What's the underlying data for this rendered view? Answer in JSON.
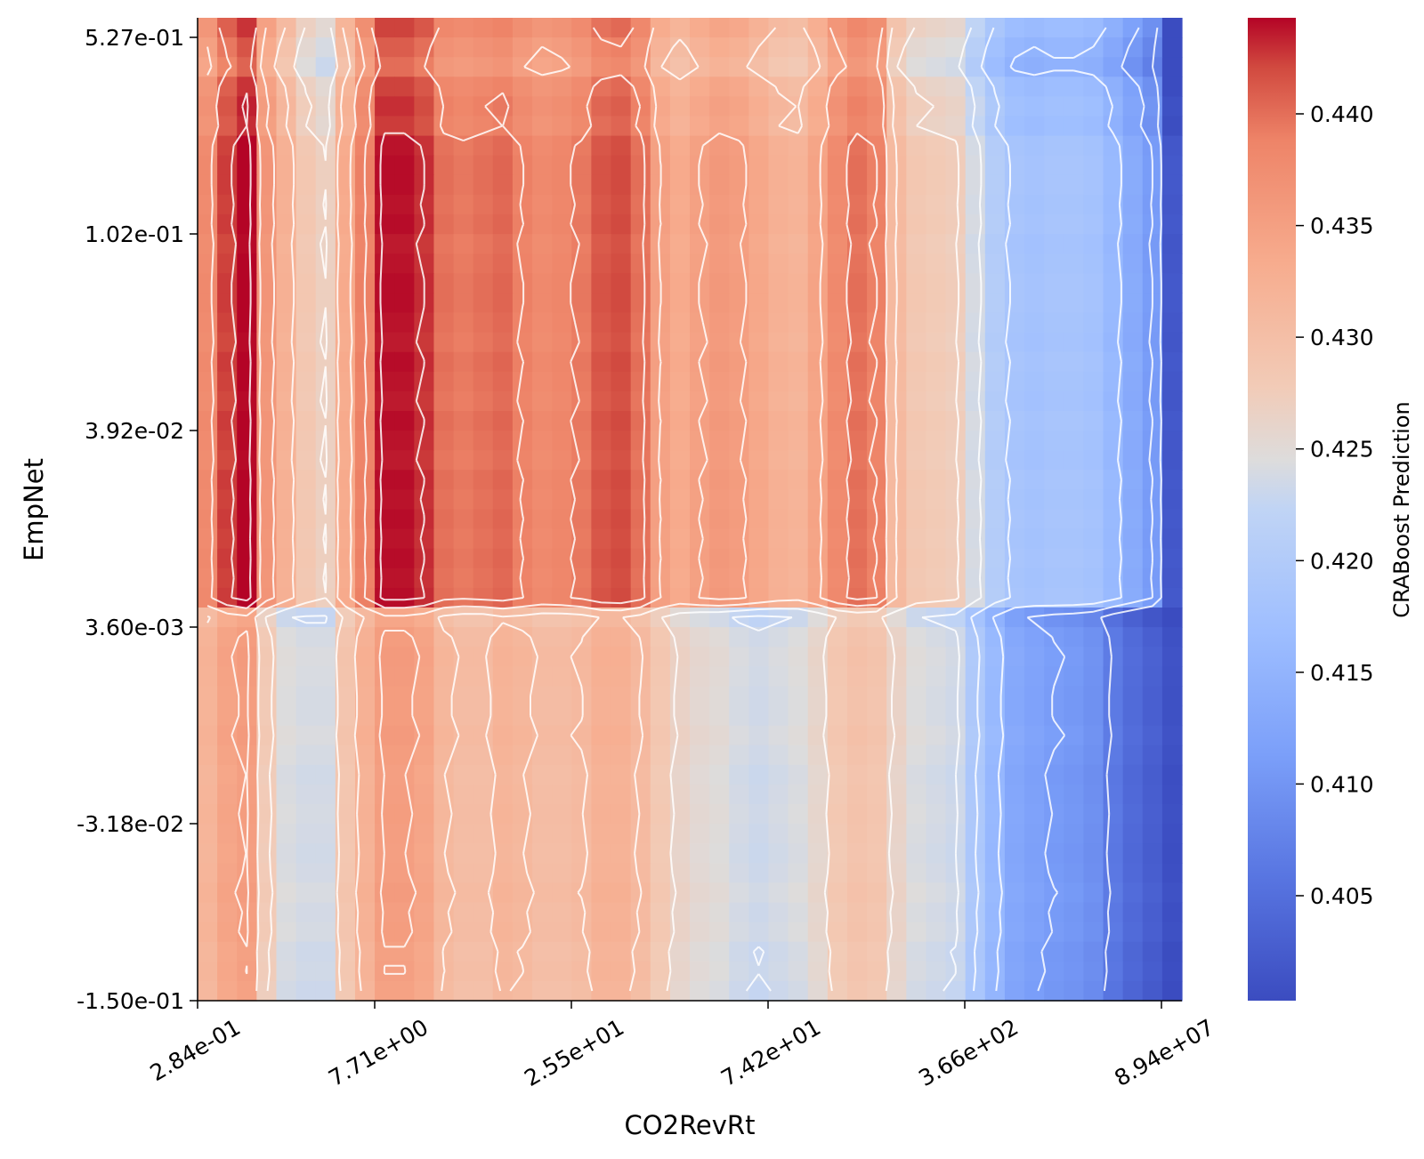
{
  "chart_data": {
    "type": "heatmap",
    "title": "",
    "xlabel": "CO2RevRt",
    "ylabel": "EmpNet",
    "x_tick_labels": [
      "2.84e-01",
      "7.71e+00",
      "2.55e+01",
      "7.42e+01",
      "3.66e+02",
      "8.94e+07"
    ],
    "y_tick_labels": [
      "5.27e-01",
      "1.02e-01",
      "3.92e-02",
      "3.60e-03",
      "-3.18e-02",
      "-1.50e-01"
    ],
    "grid_cols": 50,
    "grid_rows": 50,
    "colormap": "coolwarm",
    "colorbar": {
      "label": "CRABoost Prediction",
      "vmin": 0.4003,
      "vmax": 0.4443,
      "ticks": [
        "0.405",
        "0.410",
        "0.415",
        "0.420",
        "0.425",
        "0.430",
        "0.435",
        "0.440"
      ],
      "tick_values": [
        0.405,
        0.41,
        0.415,
        0.42,
        0.425,
        0.43,
        0.435,
        0.44
      ]
    },
    "column_profile_upper": [
      0.4375,
      0.442,
      0.444,
      0.436,
      0.432,
      0.428,
      0.4265,
      0.433,
      0.4385,
      0.4435,
      0.4435,
      0.4425,
      0.4395,
      0.439,
      0.4395,
      0.44,
      0.4385,
      0.4375,
      0.438,
      0.439,
      0.441,
      0.4415,
      0.4395,
      0.4345,
      0.433,
      0.4345,
      0.4355,
      0.435,
      0.4335,
      0.432,
      0.4315,
      0.434,
      0.4375,
      0.4395,
      0.4385,
      0.4305,
      0.428,
      0.4275,
      0.427,
      0.4235,
      0.42,
      0.418,
      0.4175,
      0.418,
      0.418,
      0.4175,
      0.4155,
      0.413,
      0.4105,
      0.4015
    ],
    "column_profile_lower": [
      0.432,
      0.4345,
      0.4355,
      0.428,
      0.4245,
      0.424,
      0.424,
      0.429,
      0.4325,
      0.4355,
      0.4355,
      0.4345,
      0.4315,
      0.4305,
      0.4305,
      0.432,
      0.4315,
      0.4305,
      0.4305,
      0.431,
      0.4325,
      0.4325,
      0.431,
      0.4285,
      0.4265,
      0.4255,
      0.425,
      0.424,
      0.4235,
      0.424,
      0.4245,
      0.426,
      0.4285,
      0.4295,
      0.429,
      0.4265,
      0.4245,
      0.424,
      0.4235,
      0.4195,
      0.416,
      0.413,
      0.412,
      0.411,
      0.4105,
      0.4095,
      0.4065,
      0.4045,
      0.403,
      0.401
    ],
    "row_modulation": [
      0.2,
      -0.4,
      -0.8,
      0.2,
      0.5,
      0.3,
      0.9,
      1.0,
      1.0,
      0.9,
      1.0,
      0.8,
      0.9,
      1.0,
      1.0,
      0.9,
      0.8,
      1.0,
      0.9,
      0.8,
      1.0,
      0.9,
      0.8,
      1.0,
      0.9,
      1.0,
      0.9,
      1.0,
      0.9,
      1.0,
      0.0,
      0.7,
      0.9,
      0.8,
      0.7,
      0.7,
      0.9,
      0.7,
      0.5,
      0.6,
      0.7,
      0.6,
      0.5,
      0.6,
      0.8,
      0.6,
      0.7,
      0.4,
      0.5,
      0.3
    ]
  }
}
